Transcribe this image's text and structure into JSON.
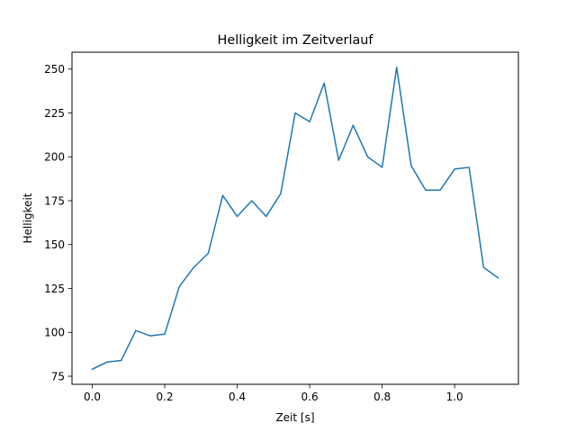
{
  "chart_data": {
    "type": "line",
    "title": "Helligkeit im Zeitverlauf",
    "xlabel": "Zeit [s]",
    "ylabel": "Helligkeit",
    "xlim": [
      -0.056,
      1.176
    ],
    "ylim": [
      70.4,
      259.6
    ],
    "xticks": [
      0.0,
      0.2,
      0.4,
      0.6,
      0.8,
      1.0
    ],
    "xtick_labels": [
      "0.0",
      "0.2",
      "0.4",
      "0.6",
      "0.8",
      "1.0"
    ],
    "yticks": [
      75,
      100,
      125,
      150,
      175,
      200,
      225,
      250
    ],
    "ytick_labels": [
      "75",
      "100",
      "125",
      "150",
      "175",
      "200",
      "225",
      "250"
    ],
    "grid": false,
    "series": [
      {
        "color": "#1f77b4",
        "x": [
          0.0,
          0.04,
          0.08,
          0.12,
          0.16,
          0.2,
          0.24,
          0.28,
          0.32,
          0.36,
          0.4,
          0.44,
          0.48,
          0.52,
          0.56,
          0.6,
          0.64,
          0.68,
          0.72,
          0.76,
          0.8,
          0.84,
          0.88,
          0.92,
          0.96,
          1.0,
          1.04,
          1.08,
          1.12
        ],
        "y": [
          79,
          83,
          84,
          101,
          98,
          99,
          126,
          137,
          145,
          178,
          166,
          175,
          166,
          179,
          225,
          220,
          242,
          198,
          218,
          200,
          194,
          251,
          195,
          181,
          181,
          193,
          194,
          137,
          131
        ]
      }
    ]
  }
}
